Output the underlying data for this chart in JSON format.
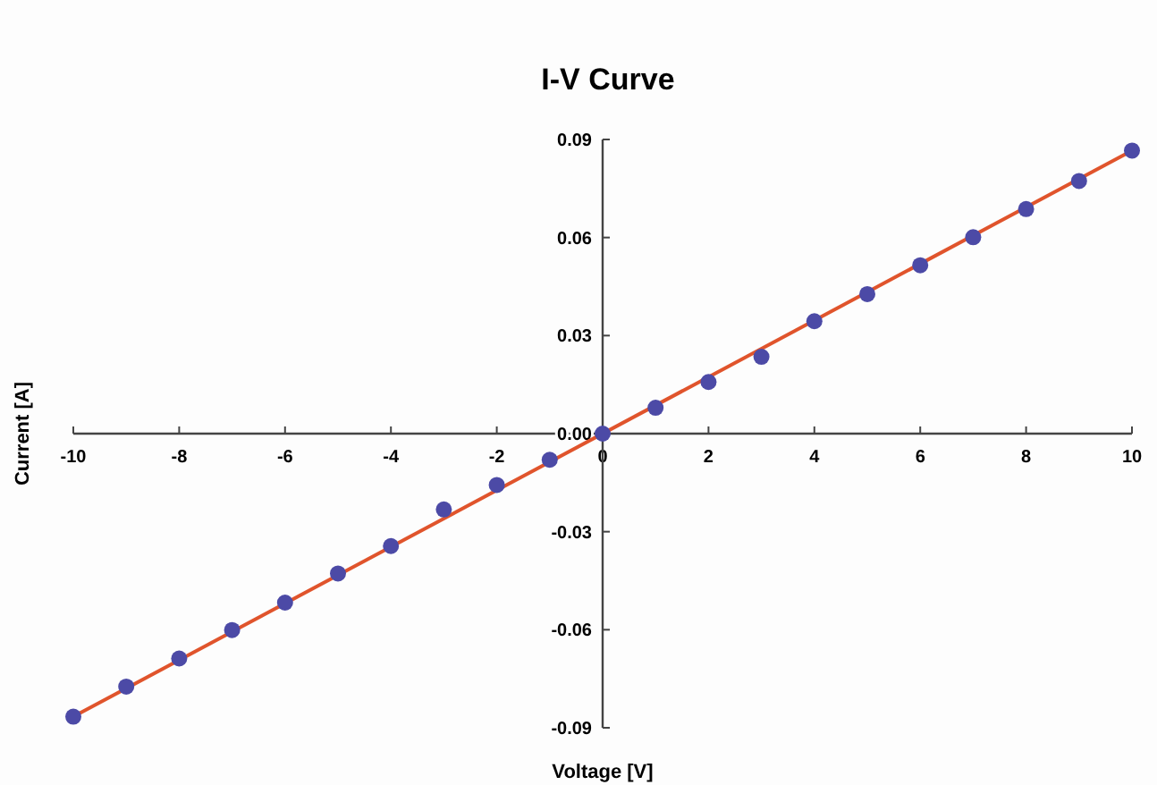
{
  "chart_data": {
    "type": "scatter",
    "title": "I-V Curve",
    "xlabel": "Voltage [V]",
    "ylabel": "Current [A]",
    "xlim": [
      -10,
      10
    ],
    "xticks": [
      -10,
      -8,
      -6,
      -4,
      -2,
      0,
      2,
      4,
      6,
      8,
      10
    ],
    "ylim": [
      -0.09,
      0.09
    ],
    "yticks": [
      {
        "value": -0.09,
        "label": "-0.09"
      },
      {
        "value": -0.06,
        "label": "-0.06"
      },
      {
        "value": -0.03,
        "label": "-0.03"
      },
      {
        "value": 0,
        "label": "0.00"
      },
      {
        "value": 0.03,
        "label": "0.03"
      },
      {
        "value": 0.06,
        "label": "0.06"
      },
      {
        "value": 0.09,
        "label": "0.09"
      }
    ],
    "grid": false,
    "marker": "circle",
    "series": [
      {
        "type": "line",
        "color": "#e0542c",
        "x": [
          -10,
          10
        ],
        "values": [
          -0.0866,
          0.0866
        ],
        "marker": "none",
        "line_style": "solid"
      },
      {
        "color": "#4c4aa6",
        "x": [
          -10,
          -9,
          -8,
          -7,
          -6,
          -5,
          -4,
          -3,
          -2,
          -1,
          0,
          1,
          2,
          3,
          4,
          5,
          6,
          7,
          8,
          9,
          10
        ],
        "values": [
          -0.0866,
          -0.0774,
          -0.0688,
          -0.0601,
          -0.0517,
          -0.0428,
          -0.0344,
          -0.0232,
          -0.0157,
          -0.008,
          0,
          0.0079,
          0.0158,
          0.0235,
          0.0344,
          0.0427,
          0.0515,
          0.0601,
          0.0687,
          0.0773,
          0.0866
        ]
      }
    ]
  }
}
